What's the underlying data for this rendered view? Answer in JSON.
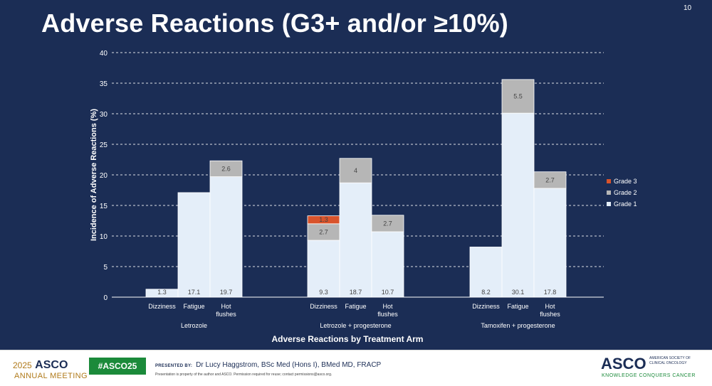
{
  "header": {
    "title": "Adverse Reactions (G3+ and/or ≥10%)",
    "page_number": "10"
  },
  "colors": {
    "background": "#1b2d55",
    "grade1": "#e4eef9",
    "grade2": "#b6b6b6",
    "grade3": "#d9532b",
    "text": "#ffffff"
  },
  "chart_data": {
    "type": "bar",
    "stacked": true,
    "title": "",
    "xlabel": "Adverse Reactions by Treatment Arm",
    "ylabel": "Incidence of Adverse Reactions (%)",
    "ylim": [
      0,
      40
    ],
    "yticks": [
      0,
      5,
      10,
      15,
      20,
      25,
      30,
      35,
      40
    ],
    "grid": true,
    "legend_position": "right",
    "legend": [
      "Grade 3",
      "Grade 2",
      "Grade 1"
    ],
    "groups": [
      {
        "name": "Letrozole",
        "bars": [
          {
            "category": "Dizziness",
            "grade1": 1.3,
            "grade2": null,
            "grade3": null
          },
          {
            "category": "Fatigue",
            "grade1": 17.1,
            "grade2": null,
            "grade3": null
          },
          {
            "category": "Hot flushes",
            "grade1": 19.7,
            "grade2": 2.6,
            "grade3": null
          }
        ]
      },
      {
        "name": "Letrozole + progesterone",
        "bars": [
          {
            "category": "Dizziness",
            "grade1": 9.3,
            "grade2": 2.7,
            "grade3": 1.3
          },
          {
            "category": "Fatigue",
            "grade1": 18.7,
            "grade2": 4,
            "grade3": null
          },
          {
            "category": "Hot flushes",
            "grade1": 10.7,
            "grade2": 2.7,
            "grade3": null
          }
        ]
      },
      {
        "name": "Tamoxifen + progesterone",
        "bars": [
          {
            "category": "Dizziness",
            "grade1": 8.2,
            "grade2": null,
            "grade3": null
          },
          {
            "category": "Fatigue",
            "grade1": 30.1,
            "grade2": 5.5,
            "grade3": null
          },
          {
            "category": "Hot flushes",
            "grade1": 17.8,
            "grade2": 2.7,
            "grade3": null
          }
        ]
      }
    ]
  },
  "footer": {
    "year": "2025",
    "asco": "ASCO",
    "meeting": "ANNUAL MEETING",
    "hashtag": "#ASCO25",
    "presented_label": "PRESENTED BY:",
    "presenter": "Dr Lucy Haggstrom, BSc Med (Hons I), BMed MD, FRACP",
    "disclaimer": "Presentation is property of the author and ASCO. Permission required for reuse; contact permissions@asco.org.",
    "logo_text": "ASCO",
    "logo_sub": "AMERICAN SOCIETY OF CLINICAL ONCOLOGY",
    "tagline": "KNOWLEDGE CONQUERS CANCER"
  }
}
